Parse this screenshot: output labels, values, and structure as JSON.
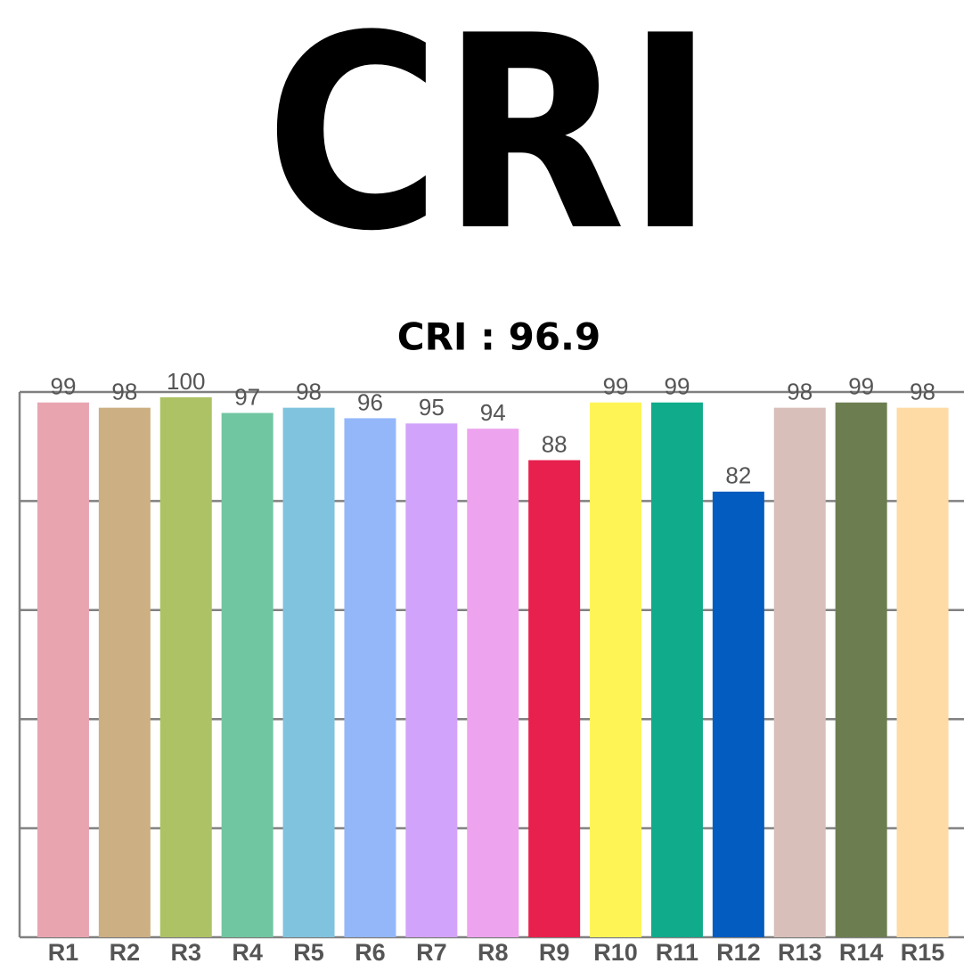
{
  "chart_data": {
    "type": "bar",
    "title": "CRI",
    "subtitle": "CRI : 96.9",
    "categories": [
      "R1",
      "R2",
      "R3",
      "R4",
      "R5",
      "R6",
      "R7",
      "R8",
      "R9",
      "R10",
      "R11",
      "R12",
      "R13",
      "R14",
      "R15"
    ],
    "values": [
      99,
      98,
      100,
      97,
      98,
      96,
      95,
      94,
      88,
      99,
      99,
      82,
      98,
      99,
      98
    ],
    "colors": [
      "#e8a5b0",
      "#ccaf82",
      "#adc265",
      "#70c6a1",
      "#80c3de",
      "#94b7fa",
      "#d2a3fb",
      "#eda3ee",
      "#e8204e",
      "#fff456",
      "#10ab8b",
      "#035cbf",
      "#d8bfba",
      "#6c7e50",
      "#fedaa5"
    ],
    "ylim": [
      -3,
      101
    ],
    "grid": true
  }
}
